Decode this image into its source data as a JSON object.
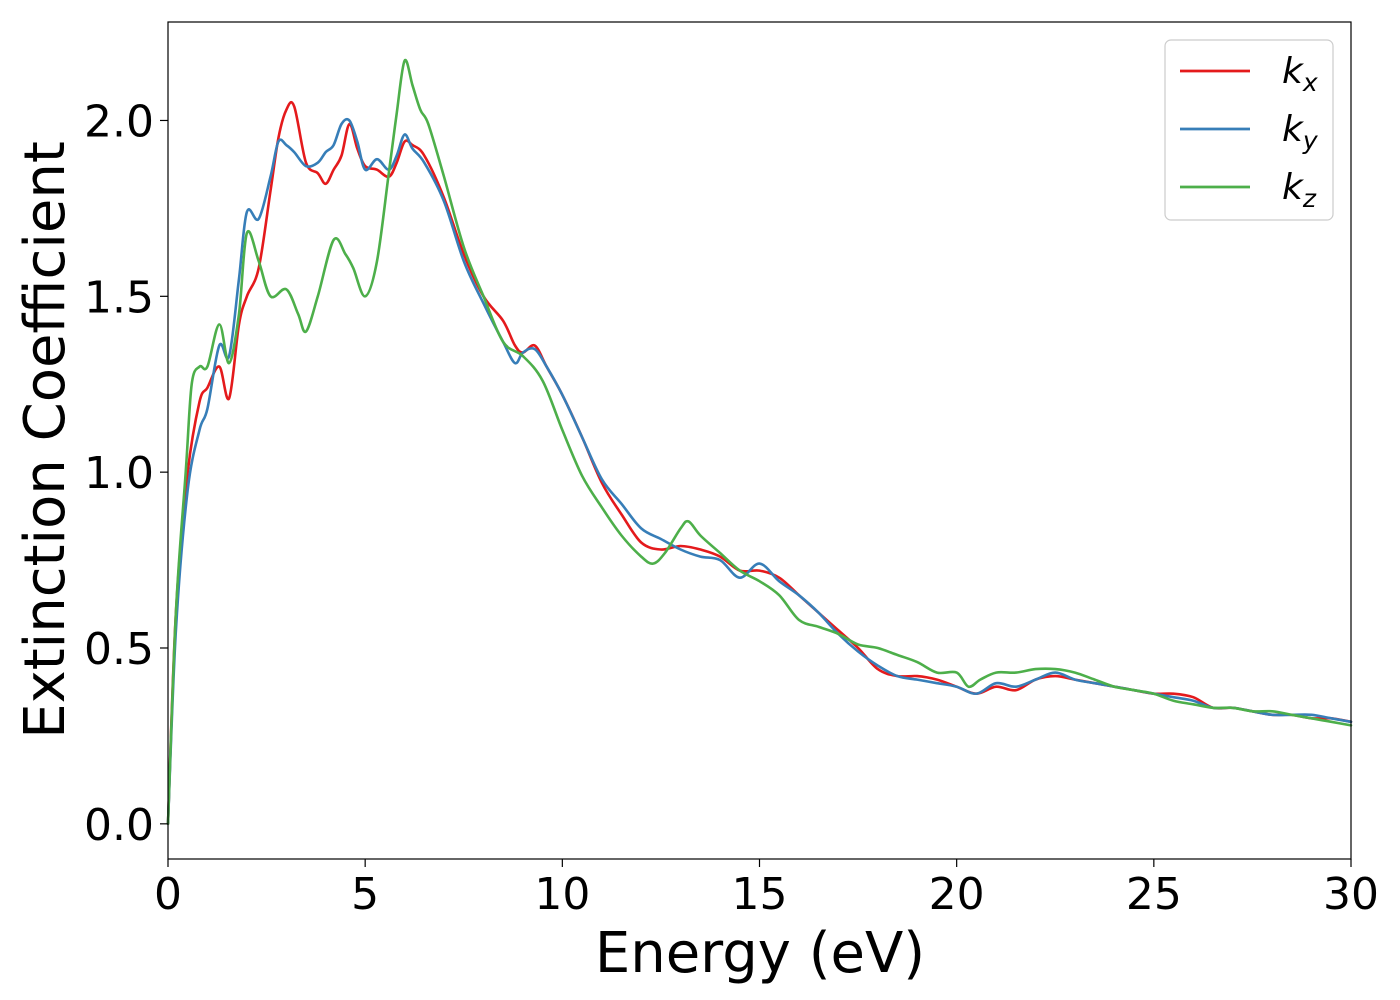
{
  "chart_data": {
    "type": "line",
    "title": "",
    "xlabel": "Energy (eV)",
    "ylabel": "Extinction Coefficient",
    "xlim": [
      0,
      30
    ],
    "ylim": [
      -0.1,
      2.28
    ],
    "xticks": [
      0,
      5,
      10,
      15,
      20,
      25,
      30
    ],
    "yticks": [
      0.0,
      0.5,
      1.0,
      1.5,
      2.0
    ],
    "xtick_labels": [
      "0",
      "5",
      "10",
      "15",
      "20",
      "25",
      "30"
    ],
    "ytick_labels": [
      "0.0",
      "0.5",
      "1.0",
      "1.5",
      "2.0"
    ],
    "grid": false,
    "legend_position": "top-right",
    "series": [
      {
        "name": "k_x",
        "label_base": "k",
        "label_sub": "x",
        "color": "#e41a1c",
        "x": [
          0.0,
          0.2,
          0.5,
          0.8,
          1.0,
          1.3,
          1.55,
          1.8,
          2.0,
          2.3,
          2.6,
          2.8,
          3.0,
          3.2,
          3.5,
          3.8,
          4.0,
          4.2,
          4.4,
          4.6,
          4.8,
          5.0,
          5.3,
          5.6,
          5.8,
          6.0,
          6.2,
          6.5,
          7.0,
          7.5,
          8.0,
          8.5,
          8.8,
          9.0,
          9.3,
          9.6,
          10.0,
          10.5,
          11.0,
          11.5,
          12.0,
          12.5,
          13.0,
          13.5,
          14.0,
          14.5,
          15.0,
          15.5,
          16.0,
          16.5,
          17.0,
          17.5,
          18.0,
          18.5,
          19.0,
          19.5,
          20.0,
          20.5,
          21.0,
          21.5,
          22.0,
          22.5,
          23.0,
          23.5,
          24.0,
          24.5,
          25.0,
          25.5,
          26.0,
          26.5,
          27.0,
          27.5,
          28.0,
          28.5,
          29.0,
          29.5,
          30.0
        ],
        "y": [
          0.0,
          0.6,
          1.0,
          1.2,
          1.24,
          1.3,
          1.21,
          1.42,
          1.5,
          1.58,
          1.8,
          1.95,
          2.03,
          2.04,
          1.88,
          1.85,
          1.82,
          1.86,
          1.9,
          1.99,
          1.92,
          1.87,
          1.86,
          1.84,
          1.88,
          1.94,
          1.93,
          1.9,
          1.78,
          1.62,
          1.5,
          1.43,
          1.36,
          1.34,
          1.36,
          1.3,
          1.22,
          1.1,
          0.97,
          0.88,
          0.8,
          0.78,
          0.79,
          0.78,
          0.76,
          0.72,
          0.72,
          0.7,
          0.65,
          0.6,
          0.55,
          0.5,
          0.44,
          0.42,
          0.42,
          0.41,
          0.39,
          0.37,
          0.39,
          0.38,
          0.41,
          0.42,
          0.41,
          0.4,
          0.39,
          0.38,
          0.37,
          0.37,
          0.36,
          0.33,
          0.33,
          0.32,
          0.31,
          0.31,
          0.3,
          0.3,
          0.29
        ]
      },
      {
        "name": "k_y",
        "label_base": "k",
        "label_sub": "y",
        "color": "#377eb8",
        "x": [
          0.0,
          0.2,
          0.5,
          0.8,
          1.0,
          1.3,
          1.55,
          1.8,
          2.0,
          2.3,
          2.6,
          2.8,
          3.0,
          3.2,
          3.5,
          3.8,
          4.0,
          4.2,
          4.4,
          4.6,
          4.8,
          5.0,
          5.3,
          5.6,
          5.8,
          6.0,
          6.2,
          6.5,
          7.0,
          7.5,
          8.0,
          8.5,
          8.8,
          9.0,
          9.3,
          9.6,
          10.0,
          10.5,
          11.0,
          11.5,
          12.0,
          12.5,
          13.0,
          13.5,
          14.0,
          14.5,
          15.0,
          15.5,
          16.0,
          16.5,
          17.0,
          17.5,
          18.0,
          18.5,
          19.0,
          19.5,
          20.0,
          20.5,
          21.0,
          21.5,
          22.0,
          22.5,
          23.0,
          23.5,
          24.0,
          24.5,
          25.0,
          25.5,
          26.0,
          26.5,
          27.0,
          27.5,
          28.0,
          28.5,
          29.0,
          29.5,
          30.0
        ],
        "y": [
          0.0,
          0.55,
          0.95,
          1.12,
          1.18,
          1.36,
          1.33,
          1.55,
          1.74,
          1.72,
          1.84,
          1.94,
          1.93,
          1.91,
          1.87,
          1.88,
          1.91,
          1.93,
          1.99,
          2.0,
          1.94,
          1.86,
          1.89,
          1.86,
          1.9,
          1.96,
          1.92,
          1.88,
          1.77,
          1.6,
          1.48,
          1.37,
          1.31,
          1.34,
          1.35,
          1.3,
          1.22,
          1.1,
          0.98,
          0.91,
          0.84,
          0.81,
          0.78,
          0.76,
          0.75,
          0.7,
          0.74,
          0.69,
          0.65,
          0.6,
          0.54,
          0.49,
          0.45,
          0.42,
          0.41,
          0.4,
          0.39,
          0.37,
          0.4,
          0.39,
          0.41,
          0.43,
          0.41,
          0.4,
          0.39,
          0.38,
          0.37,
          0.36,
          0.35,
          0.33,
          0.33,
          0.32,
          0.31,
          0.31,
          0.31,
          0.3,
          0.29
        ]
      },
      {
        "name": "k_z",
        "label_base": "k",
        "label_sub": "z",
        "color": "#4daf4a",
        "x": [
          0.0,
          0.2,
          0.45,
          0.6,
          0.8,
          1.0,
          1.3,
          1.55,
          1.8,
          2.0,
          2.3,
          2.6,
          3.0,
          3.3,
          3.5,
          3.8,
          4.2,
          4.5,
          4.7,
          5.0,
          5.3,
          5.6,
          5.8,
          6.0,
          6.2,
          6.4,
          6.6,
          7.0,
          7.5,
          8.0,
          8.5,
          9.0,
          9.5,
          10.0,
          10.5,
          11.0,
          11.5,
          12.0,
          12.3,
          12.6,
          13.0,
          13.2,
          13.5,
          14.0,
          14.5,
          15.0,
          15.5,
          16.0,
          16.5,
          17.0,
          17.5,
          18.0,
          18.5,
          19.0,
          19.5,
          20.0,
          20.3,
          20.6,
          21.0,
          21.5,
          22.0,
          22.5,
          23.0,
          23.5,
          24.0,
          24.5,
          25.0,
          25.5,
          26.0,
          26.5,
          27.0,
          27.5,
          28.0,
          28.5,
          29.0,
          29.5,
          30.0
        ],
        "y": [
          0.0,
          0.6,
          1.0,
          1.25,
          1.3,
          1.3,
          1.42,
          1.31,
          1.45,
          1.68,
          1.6,
          1.5,
          1.52,
          1.45,
          1.4,
          1.5,
          1.66,
          1.62,
          1.58,
          1.5,
          1.6,
          1.85,
          2.02,
          2.17,
          2.1,
          2.03,
          1.99,
          1.84,
          1.64,
          1.5,
          1.37,
          1.33,
          1.26,
          1.12,
          0.99,
          0.9,
          0.82,
          0.76,
          0.74,
          0.77,
          0.84,
          0.86,
          0.82,
          0.77,
          0.72,
          0.69,
          0.65,
          0.58,
          0.56,
          0.54,
          0.51,
          0.5,
          0.48,
          0.46,
          0.43,
          0.43,
          0.39,
          0.41,
          0.43,
          0.43,
          0.44,
          0.44,
          0.43,
          0.41,
          0.39,
          0.38,
          0.37,
          0.35,
          0.34,
          0.33,
          0.33,
          0.32,
          0.32,
          0.31,
          0.3,
          0.29,
          0.28
        ]
      }
    ]
  }
}
